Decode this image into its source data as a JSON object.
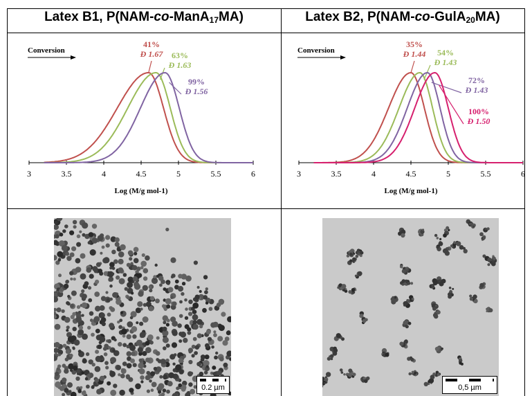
{
  "panels": [
    {
      "title_prefix": "Latex B1, P(NAM-",
      "title_italic": "co",
      "title_mid": "-ManA",
      "title_sub": "17",
      "title_suffix": "MA)",
      "scale_label": "0.2 µm"
    },
    {
      "title_prefix": "Latex B2, P(NAM-",
      "title_italic": "co",
      "title_mid": "-GulA",
      "title_sub": "20",
      "title_suffix": "MA)",
      "scale_label": "0,5 µm"
    }
  ],
  "chart_data": [
    {
      "type": "line",
      "title": "",
      "xlabel": "Log (M/g mol-1)",
      "ylabel": "",
      "xlim": [
        3,
        6
      ],
      "xticks": [
        "3",
        "3.5",
        "4",
        "4.5",
        "5",
        "5.5",
        "6"
      ],
      "arrow_label": "Conversion",
      "series": [
        {
          "color": "#c0504d",
          "peak": 4.6,
          "sigma_left": 0.42,
          "sigma_right": 0.2,
          "conversion": "41%",
          "dispersity": "Đ 1.67"
        },
        {
          "color": "#9bbb59",
          "peak": 4.7,
          "sigma_left": 0.38,
          "sigma_right": 0.19,
          "conversion": "63%",
          "dispersity": "Đ 1.63"
        },
        {
          "color": "#8064a2",
          "peak": 4.82,
          "sigma_left": 0.33,
          "sigma_right": 0.19,
          "conversion": "99%",
          "dispersity": "Đ 1.56"
        }
      ]
    },
    {
      "type": "line",
      "title": "",
      "xlabel": "Log (M/g mol-1)",
      "ylabel": "",
      "xlim": [
        3,
        6
      ],
      "xticks": [
        "3",
        "3.5",
        "4",
        "4.5",
        "5",
        "5.5",
        "6"
      ],
      "arrow_label": "Conversion",
      "series": [
        {
          "color": "#c0504d",
          "peak": 4.5,
          "sigma_left": 0.3,
          "sigma_right": 0.18,
          "conversion": "35%",
          "dispersity": "Đ 1.44"
        },
        {
          "color": "#9bbb59",
          "peak": 4.62,
          "sigma_left": 0.28,
          "sigma_right": 0.17,
          "conversion": "54%",
          "dispersity": "Đ 1.43"
        },
        {
          "color": "#8064a2",
          "peak": 4.72,
          "sigma_left": 0.27,
          "sigma_right": 0.17,
          "conversion": "72%",
          "dispersity": "Đ 1.43"
        },
        {
          "color": "#d6206e",
          "peak": 4.82,
          "sigma_left": 0.27,
          "sigma_right": 0.18,
          "conversion": "100%",
          "dispersity": "Đ 1.50"
        }
      ]
    }
  ]
}
